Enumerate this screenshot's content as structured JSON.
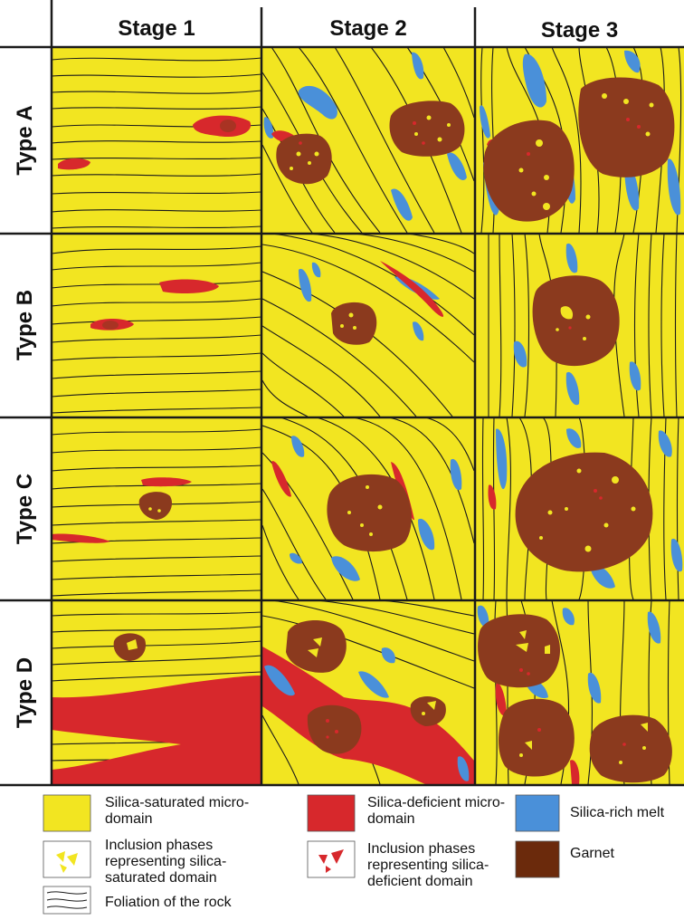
{
  "columns": [
    "Stage 1",
    "Stage 2",
    "Stage 3"
  ],
  "rows": [
    "Type A",
    "Type B",
    "Type C",
    "Type D"
  ],
  "colors": {
    "silica_saturated": "#f2e521",
    "silica_deficient": "#d7282c",
    "silica_rich_melt": "#4a90d9",
    "garnet": "#8b3a1e",
    "garnet_legend": "#6b2a0c",
    "foliation": "#1a1a1a"
  },
  "legend": {
    "silica_saturated": "Silica-saturated micro-domain",
    "silica_saturated_inclusions": "Inclusion phases representing silica-saturated domain",
    "foliation": "Foliation of the rock",
    "silica_deficient": "Silica-deficient micro-domain",
    "silica_deficient_inclusions": "Inclusion phases representing silica-deficient domain",
    "silica_rich_melt": "Silica-rich melt",
    "garnet": "Garnet"
  }
}
